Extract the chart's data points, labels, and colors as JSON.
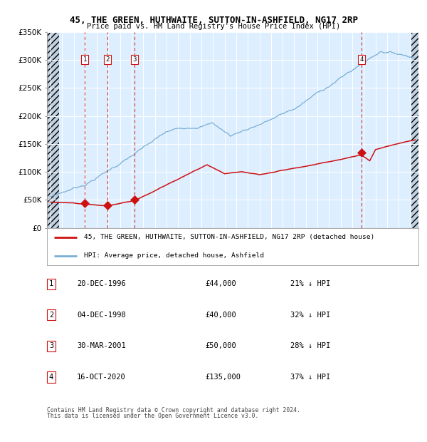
{
  "title": "45, THE GREEN, HUTHWAITE, SUTTON-IN-ASHFIELD, NG17 2RP",
  "subtitle": "Price paid vs. HM Land Registry's House Price Index (HPI)",
  "legend_property": "45, THE GREEN, HUTHWAITE, SUTTON-IN-ASHFIELD, NG17 2RP (detached house)",
  "legend_hpi": "HPI: Average price, detached house, Ashfield",
  "footer1": "Contains HM Land Registry data © Crown copyright and database right 2024.",
  "footer2": "This data is licensed under the Open Government Licence v3.0.",
  "hpi_color": "#7aafd4",
  "property_color": "#cc1111",
  "sale_marker_color": "#cc1111",
  "vline_color": "#cc1111",
  "bg_color": "#ddeeff",
  "hatch_color": "#c0d0e0",
  "grid_color": "#ffffff",
  "ylim": [
    0,
    350000
  ],
  "yticks": [
    0,
    50000,
    100000,
    150000,
    200000,
    250000,
    300000,
    350000
  ],
  "ytick_labels": [
    "£0",
    "£50K",
    "£100K",
    "£150K",
    "£200K",
    "£250K",
    "£300K",
    "£350K"
  ],
  "xlim_start": 1993.7,
  "xlim_end": 2025.7,
  "hatch_left_end": 1994.75,
  "hatch_right_start": 2025.0,
  "sales": [
    {
      "num": 1,
      "year": 1996.97,
      "price": 44000,
      "date": "20-DEC-1996",
      "pct": "21%"
    },
    {
      "num": 2,
      "year": 1998.92,
      "price": 40000,
      "date": "04-DEC-1998",
      "pct": "32%"
    },
    {
      "num": 3,
      "year": 2001.24,
      "price": 50000,
      "date": "30-MAR-2001",
      "pct": "28%"
    },
    {
      "num": 4,
      "year": 2020.79,
      "price": 135000,
      "date": "16-OCT-2020",
      "pct": "37%"
    }
  ],
  "table_rows": [
    {
      "num": 1,
      "date": "20-DEC-1996",
      "price": "£44,000",
      "pct": "21% ↓ HPI"
    },
    {
      "num": 2,
      "date": "04-DEC-1998",
      "price": "£40,000",
      "pct": "32% ↓ HPI"
    },
    {
      "num": 3,
      "date": "30-MAR-2001",
      "price": "£50,000",
      "pct": "28% ↓ HPI"
    },
    {
      "num": 4,
      "date": "16-OCT-2020",
      "price": "£135,000",
      "pct": "37% ↓ HPI"
    }
  ]
}
